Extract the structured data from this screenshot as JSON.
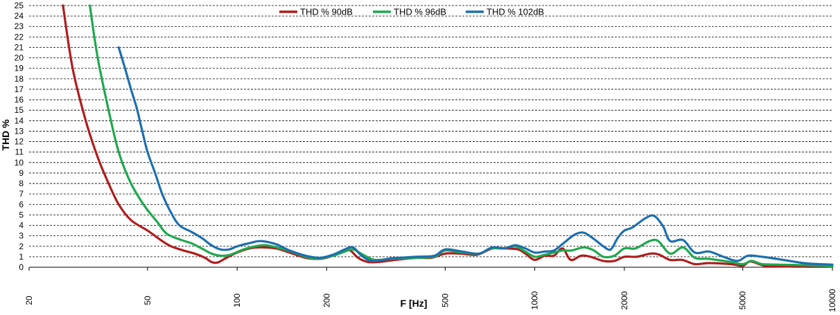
{
  "chart_data": {
    "type": "line",
    "title": "",
    "xlabel": "F [Hz]",
    "ylabel": "THD %",
    "x_scale": "log",
    "xlim": [
      20,
      10000
    ],
    "ylim": [
      0,
      25
    ],
    "x_ticks": [
      20,
      50,
      100,
      200,
      500,
      1000,
      2000,
      5000,
      10000
    ],
    "y_ticks": [
      0,
      1,
      2,
      3,
      4,
      5,
      6,
      7,
      8,
      9,
      10,
      11,
      12,
      13,
      14,
      15,
      16,
      17,
      18,
      19,
      20,
      21,
      22,
      23,
      24,
      25
    ],
    "grid": "horizontal dashed",
    "legend_position": "top-center",
    "series": [
      {
        "name": "THD % 90dB",
        "color": "#b01c1c",
        "points": [
          [
            26,
            25
          ],
          [
            28,
            19
          ],
          [
            31,
            14
          ],
          [
            34,
            10.5
          ],
          [
            37,
            8
          ],
          [
            40,
            6
          ],
          [
            44,
            4.5
          ],
          [
            50,
            3.5
          ],
          [
            56,
            2.5
          ],
          [
            60,
            2
          ],
          [
            66,
            1.6
          ],
          [
            72,
            1.3
          ],
          [
            78,
            0.9
          ],
          [
            82,
            0.5
          ],
          [
            86,
            0.45
          ],
          [
            92,
            0.9
          ],
          [
            100,
            1.4
          ],
          [
            110,
            1.8
          ],
          [
            120,
            1.9
          ],
          [
            135,
            1.8
          ],
          [
            150,
            1.4
          ],
          [
            170,
            0.9
          ],
          [
            190,
            0.8
          ],
          [
            210,
            1.1
          ],
          [
            230,
            1.5
          ],
          [
            240,
            1.6
          ],
          [
            255,
            0.9
          ],
          [
            275,
            0.5
          ],
          [
            300,
            0.5
          ],
          [
            340,
            0.7
          ],
          [
            400,
            0.9
          ],
          [
            450,
            0.9
          ],
          [
            500,
            1.3
          ],
          [
            560,
            1.3
          ],
          [
            640,
            1.2
          ],
          [
            720,
            1.8
          ],
          [
            800,
            1.8
          ],
          [
            880,
            1.7
          ],
          [
            930,
            1.3
          ],
          [
            1000,
            0.7
          ],
          [
            1080,
            1.1
          ],
          [
            1160,
            1.1
          ],
          [
            1240,
            1.8
          ],
          [
            1320,
            0.7
          ],
          [
            1430,
            1.1
          ],
          [
            1540,
            1.0
          ],
          [
            1700,
            0.6
          ],
          [
            1850,
            0.6
          ],
          [
            2000,
            1.0
          ],
          [
            2200,
            1.0
          ],
          [
            2450,
            1.3
          ],
          [
            2620,
            1.2
          ],
          [
            2850,
            0.7
          ],
          [
            3130,
            0.7
          ],
          [
            3450,
            0.3
          ],
          [
            3850,
            0.4
          ],
          [
            4550,
            0.3
          ],
          [
            5000,
            0.15
          ],
          [
            5300,
            0.55
          ],
          [
            5900,
            0.15
          ],
          [
            6500,
            0.1
          ],
          [
            8000,
            0.05
          ],
          [
            10000,
            0.05
          ]
        ]
      },
      {
        "name": "THD % 96dB",
        "color": "#1fa84e",
        "points": [
          [
            32,
            25
          ],
          [
            34,
            20
          ],
          [
            37,
            15
          ],
          [
            40,
            11
          ],
          [
            44,
            8
          ],
          [
            49,
            5.8
          ],
          [
            54,
            4.3
          ],
          [
            58,
            3.2
          ],
          [
            65,
            2.6
          ],
          [
            70,
            2.3
          ],
          [
            76,
            1.8
          ],
          [
            82,
            1.3
          ],
          [
            88,
            1.1
          ],
          [
            95,
            1.2
          ],
          [
            105,
            1.7
          ],
          [
            115,
            2.0
          ],
          [
            125,
            2.1
          ],
          [
            140,
            1.8
          ],
          [
            155,
            1.4
          ],
          [
            170,
            1.0
          ],
          [
            185,
            0.8
          ],
          [
            210,
            1.1
          ],
          [
            230,
            1.5
          ],
          [
            245,
            1.7
          ],
          [
            265,
            1.2
          ],
          [
            290,
            0.7
          ],
          [
            330,
            0.8
          ],
          [
            400,
            0.9
          ],
          [
            460,
            1.0
          ],
          [
            500,
            1.6
          ],
          [
            570,
            1.4
          ],
          [
            650,
            1.3
          ],
          [
            710,
            1.8
          ],
          [
            780,
            1.8
          ],
          [
            860,
            2.0
          ],
          [
            930,
            1.5
          ],
          [
            1000,
            1.0
          ],
          [
            1080,
            1.2
          ],
          [
            1160,
            1.4
          ],
          [
            1240,
            1.6
          ],
          [
            1330,
            1.6
          ],
          [
            1460,
            1.9
          ],
          [
            1580,
            1.6
          ],
          [
            1700,
            1.0
          ],
          [
            1850,
            1.1
          ],
          [
            2000,
            1.8
          ],
          [
            2180,
            1.8
          ],
          [
            2430,
            2.5
          ],
          [
            2600,
            2.5
          ],
          [
            2850,
            1.3
          ],
          [
            3150,
            1.9
          ],
          [
            3450,
            0.9
          ],
          [
            3850,
            0.8
          ],
          [
            4550,
            0.5
          ],
          [
            5000,
            0.3
          ],
          [
            5350,
            0.6
          ],
          [
            5800,
            0.3
          ],
          [
            6500,
            0.25
          ],
          [
            8000,
            0.2
          ],
          [
            10000,
            0.1
          ]
        ]
      },
      {
        "name": "THD % 102dB",
        "color": "#1c6fae",
        "points": [
          [
            40,
            21
          ],
          [
            42,
            19
          ],
          [
            44,
            17
          ],
          [
            46,
            15.2
          ],
          [
            48,
            13
          ],
          [
            50,
            11
          ],
          [
            53,
            9
          ],
          [
            56,
            7
          ],
          [
            60,
            5.2
          ],
          [
            64,
            4
          ],
          [
            70,
            3.4
          ],
          [
            76,
            2.8
          ],
          [
            82,
            2.1
          ],
          [
            88,
            1.7
          ],
          [
            94,
            1.7
          ],
          [
            100,
            2.0
          ],
          [
            110,
            2.3
          ],
          [
            120,
            2.5
          ],
          [
            135,
            2.2
          ],
          [
            150,
            1.6
          ],
          [
            170,
            1.1
          ],
          [
            190,
            0.9
          ],
          [
            210,
            1.2
          ],
          [
            230,
            1.7
          ],
          [
            245,
            1.9
          ],
          [
            262,
            1.1
          ],
          [
            285,
            0.6
          ],
          [
            330,
            0.85
          ],
          [
            400,
            1.0
          ],
          [
            460,
            1.1
          ],
          [
            500,
            1.7
          ],
          [
            570,
            1.5
          ],
          [
            650,
            1.3
          ],
          [
            720,
            1.9
          ],
          [
            790,
            1.8
          ],
          [
            860,
            2.1
          ],
          [
            930,
            1.8
          ],
          [
            1000,
            1.4
          ],
          [
            1080,
            1.5
          ],
          [
            1160,
            1.6
          ],
          [
            1250,
            2.3
          ],
          [
            1360,
            3.1
          ],
          [
            1460,
            3.3
          ],
          [
            1580,
            2.7
          ],
          [
            1700,
            2.0
          ],
          [
            1800,
            1.7
          ],
          [
            1900,
            2.8
          ],
          [
            2000,
            3.5
          ],
          [
            2130,
            3.8
          ],
          [
            2360,
            4.7
          ],
          [
            2520,
            4.9
          ],
          [
            2700,
            3.9
          ],
          [
            2850,
            2.5
          ],
          [
            3150,
            2.6
          ],
          [
            3450,
            1.4
          ],
          [
            3850,
            1.5
          ],
          [
            4300,
            1.0
          ],
          [
            4800,
            0.6
          ],
          [
            5200,
            1.1
          ],
          [
            5800,
            1.0
          ],
          [
            6500,
            0.8
          ],
          [
            8000,
            0.4
          ],
          [
            9000,
            0.3
          ],
          [
            10000,
            0.25
          ]
        ]
      }
    ]
  }
}
